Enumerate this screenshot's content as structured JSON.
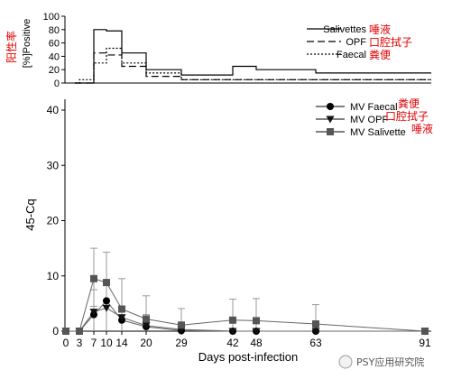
{
  "chart_data": [
    {
      "type": "step",
      "ylabel": "[%]Positive",
      "ylabel_zh": "阳性率",
      "ylim": [
        0,
        100
      ],
      "yticks": [
        0,
        20,
        40,
        60,
        80,
        100
      ],
      "xlim": [
        0,
        91
      ],
      "legend": {
        "position": "top-right"
      },
      "series": [
        {
          "name": "Salivettes",
          "name_zh": "唾液",
          "style": "solid",
          "points": [
            [
              2,
              0
            ],
            [
              3,
              0
            ],
            [
              7,
              80
            ],
            [
              10,
              78
            ],
            [
              14,
              45
            ],
            [
              20,
              20
            ],
            [
              29,
              12
            ],
            [
              42,
              25
            ],
            [
              48,
              20
            ],
            [
              63,
              15
            ],
            [
              91,
              15
            ]
          ]
        },
        {
          "name": "OPF",
          "name_zh": "口腔拭子",
          "style": "dashed",
          "points": [
            [
              2,
              0
            ],
            [
              7,
              45
            ],
            [
              10,
              42
            ],
            [
              14,
              25
            ],
            [
              20,
              10
            ],
            [
              29,
              5
            ],
            [
              91,
              5
            ]
          ]
        },
        {
          "name": "Faecal",
          "name_zh": "粪便",
          "style": "dotted",
          "points": [
            [
              2,
              0
            ],
            [
              3,
              5
            ],
            [
              7,
              30
            ],
            [
              10,
              52
            ],
            [
              14,
              30
            ],
            [
              20,
              15
            ],
            [
              29,
              5
            ],
            [
              91,
              5
            ]
          ]
        }
      ]
    },
    {
      "type": "line",
      "xlabel": "Days post-infection",
      "ylabel": "45-Cq",
      "ylim": [
        0,
        40
      ],
      "yticks": [
        0,
        10,
        20,
        30,
        40
      ],
      "xlim": [
        0,
        91
      ],
      "xticks": [
        0,
        3,
        7,
        10,
        14,
        20,
        29,
        42,
        48,
        63,
        91
      ],
      "legend": {
        "position": "top-right"
      },
      "series": [
        {
          "name": "MV Faecal",
          "name_zh": "粪便",
          "marker": "circle",
          "x": [
            0,
            3,
            7,
            10,
            14,
            20,
            29,
            42,
            48,
            63,
            91
          ],
          "y": [
            0,
            0,
            3,
            5.5,
            2,
            0.8,
            0.1,
            0,
            0,
            0,
            0
          ],
          "err": [
            0,
            0,
            1.5,
            3,
            1.5,
            1,
            0.5,
            0,
            0,
            0,
            0
          ]
        },
        {
          "name": "MV OPF",
          "name_zh": "口腔拭子",
          "marker": "triangle",
          "x": [
            0,
            3,
            7,
            10,
            14,
            20,
            29,
            42,
            48,
            63,
            91
          ],
          "y": [
            0,
            0,
            3.5,
            4.2,
            2.5,
            1,
            0.3,
            0,
            0,
            0,
            0
          ],
          "err": [
            0,
            0,
            4,
            5,
            2,
            2,
            1,
            0,
            0,
            0,
            0
          ]
        },
        {
          "name": "MV Salivette",
          "name_zh": "唾液",
          "marker": "square",
          "x": [
            0,
            3,
            7,
            10,
            14,
            20,
            29,
            42,
            48,
            63,
            91
          ],
          "y": [
            0,
            0,
            9.5,
            8.8,
            4,
            2.2,
            1.1,
            2,
            1.9,
            1.3,
            0
          ],
          "err": [
            0,
            0,
            5.5,
            5.5,
            5.5,
            4.2,
            3,
            3.8,
            4,
            3.5,
            0.3
          ]
        }
      ]
    }
  ],
  "watermark": "PSY应用研究院",
  "colors": {
    "axis": "#000000",
    "marker": "#333333",
    "errorbar": "#999999",
    "annotation": "#e00000",
    "watermark_text": "#555555"
  }
}
